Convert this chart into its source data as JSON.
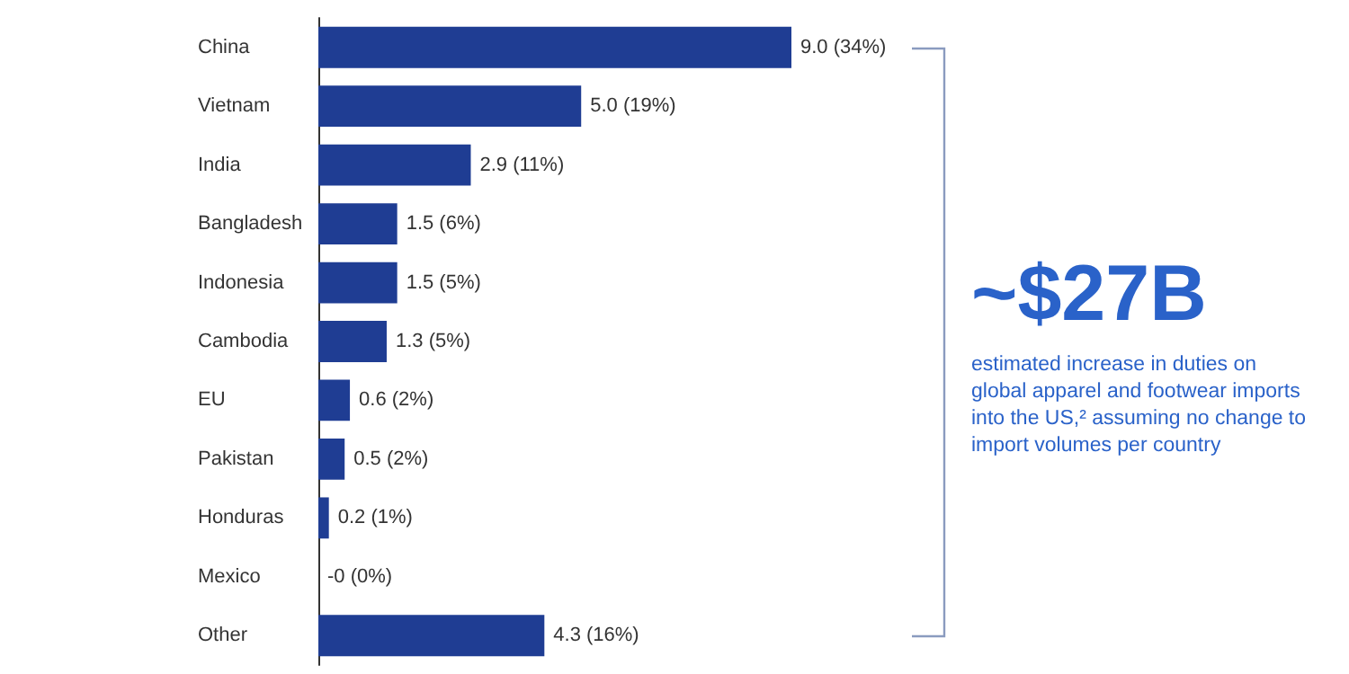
{
  "chart_data": {
    "type": "bar",
    "orientation": "horizontal",
    "categories": [
      "China",
      "Vietnam",
      "India",
      "Bangladesh",
      "Indonesia",
      "Cambodia",
      "EU",
      "Pakistan",
      "Honduras",
      "Mexico",
      "Other"
    ],
    "values": [
      9.0,
      5.0,
      2.9,
      1.5,
      1.5,
      1.3,
      0.6,
      0.5,
      0.2,
      0,
      4.3
    ],
    "value_labels": [
      "9.0 (34%)",
      "5.0 (19%)",
      "2.9 (11%)",
      "1.5 (6%)",
      "1.5 (5%)",
      "1.3 (5%)",
      "0.6 (2%)",
      "0.5 (2%)",
      "0.2 (1%)",
      "-0 (0%)",
      "4.3 (16%)"
    ],
    "color": "#1f3d93",
    "annotations": [
      "~$27B",
      "estimated increase in duties on global apparel and footwear imports into the US,² assuming no change to import volumes per country"
    ]
  }
}
